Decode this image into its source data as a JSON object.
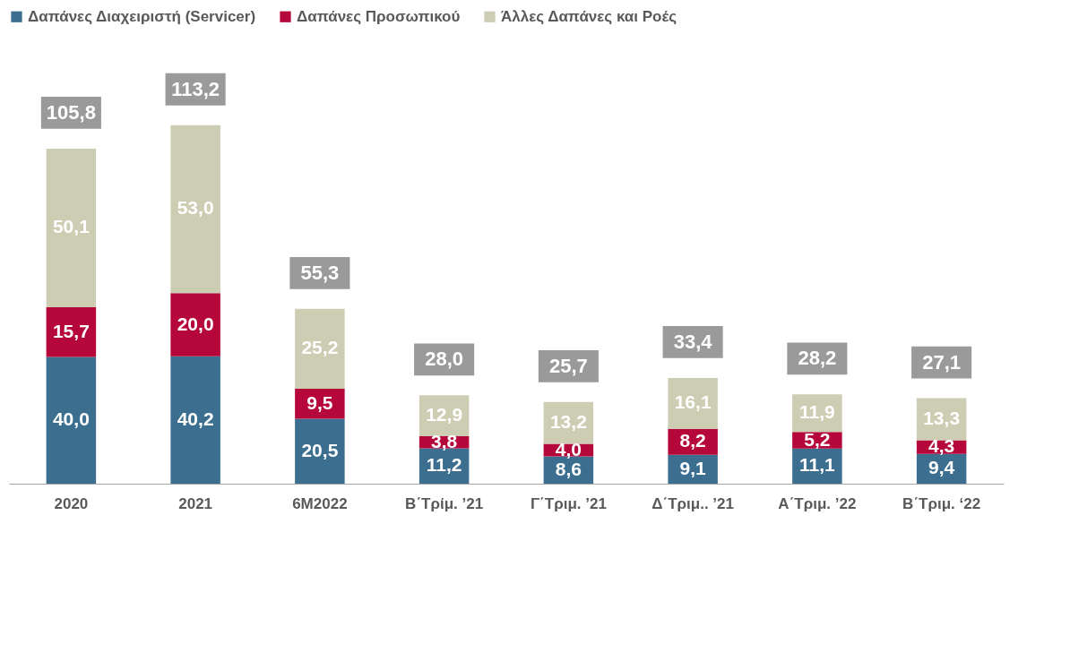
{
  "chart_data": {
    "type": "bar",
    "stacked": true,
    "legend": "top",
    "categories": [
      "2020",
      "2021",
      "6M2022",
      "Β΄Τρίμ. ’21",
      "Γ΄Τριμ. ’21",
      "Δ΄Τριμ.. ’21",
      "Α΄Τριμ. ’22",
      "Β΄Τριμ. ‘22"
    ],
    "series": [
      {
        "name": "Δαπάνες Διαχειριστή (Servicer)",
        "color": "#3b6e8f",
        "values": [
          40.0,
          40.2,
          20.5,
          11.2,
          8.6,
          9.1,
          11.1,
          9.4
        ],
        "value_labels": [
          "40,0",
          "40,2",
          "20,5",
          "11,2",
          "8,6",
          "9,1",
          "11,1",
          "9,4"
        ]
      },
      {
        "name": "Δαπάνες Προσωπικού",
        "color": "#b5073a",
        "values": [
          15.7,
          20.0,
          9.5,
          3.8,
          4.0,
          8.2,
          5.2,
          4.3
        ],
        "value_labels": [
          "15,7",
          "20,0",
          "9,5",
          "3,8",
          "4,0",
          "8,2",
          "5,2",
          "4,3"
        ]
      },
      {
        "name": "Άλλες Δαπάνες και Ροές",
        "color": "#cccdb3",
        "values": [
          50.1,
          53.0,
          25.2,
          12.9,
          13.2,
          16.1,
          11.9,
          13.3
        ],
        "value_labels": [
          "50,1",
          "53,0",
          "25,2",
          "12,9",
          "13,2",
          "16,1",
          "11,9",
          "13,3"
        ]
      }
    ],
    "totals": [
      "105,8",
      "113,2",
      "55,3",
      "28,0",
      "25,7",
      "33,4",
      "28,2",
      "27,1"
    ]
  }
}
